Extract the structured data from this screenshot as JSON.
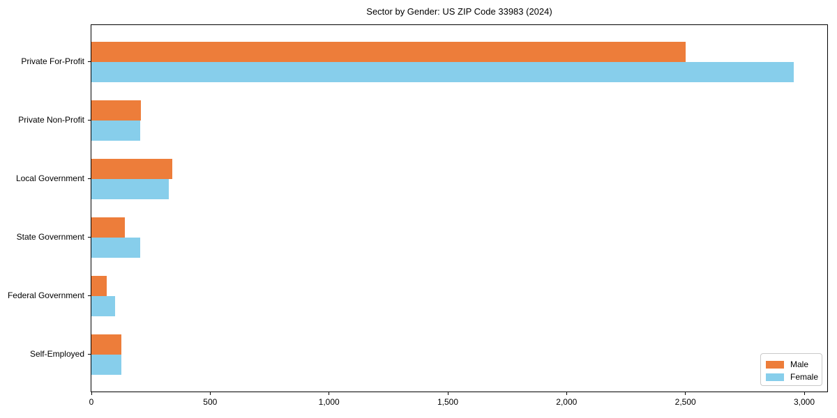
{
  "chart_data": {
    "type": "bar",
    "orientation": "horizontal",
    "title": "Sector by Gender: US ZIP Code 33983 (2024)",
    "xlabel": "",
    "ylabel": "",
    "categories": [
      "Private For-Profit",
      "Private Non-Profit",
      "Local Government",
      "State Government",
      "Federal Government",
      "Self-Employed"
    ],
    "series": [
      {
        "name": "Male",
        "color": "#ed7d3a",
        "values": [
          2500,
          208,
          340,
          142,
          65,
          127
        ]
      },
      {
        "name": "Female",
        "color": "#87ceeb",
        "values": [
          2955,
          205,
          326,
          206,
          100,
          127
        ]
      }
    ],
    "xlim": [
      0,
      3000
    ],
    "xticks": [
      0,
      500,
      1000,
      1500,
      2000,
      2500,
      3000
    ],
    "xtick_labels": [
      "0",
      "500",
      "1,000",
      "1,500",
      "2,000",
      "2,500",
      "3,000"
    ],
    "legend_position": "lower right",
    "grid": false,
    "background_color": "#ffffff",
    "spine_color": "#000000"
  }
}
